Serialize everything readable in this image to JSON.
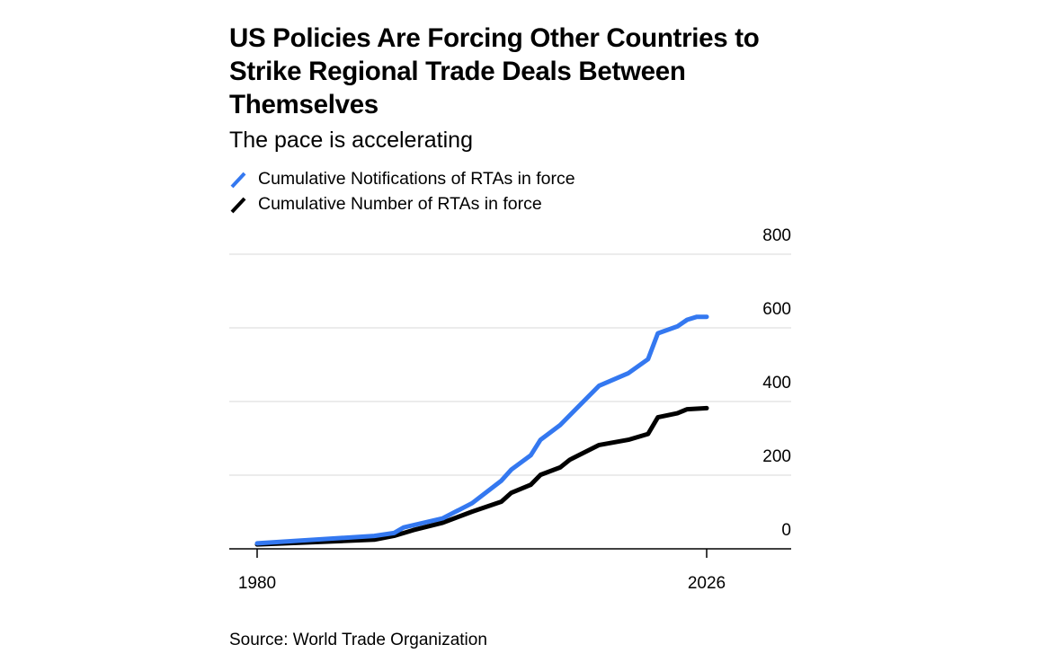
{
  "chart_data": {
    "type": "line",
    "title": "US Policies Are Forcing Other Countries to Strike Regional Trade Deals Between Themselves",
    "subtitle": "The pace is accelerating",
    "source": "Source: World Trade Organization",
    "xlim": [
      1980,
      2026
    ],
    "ylim": [
      0,
      800
    ],
    "x_ticks": [
      "1980",
      "2026"
    ],
    "y_ticks": [
      "800",
      "600",
      "400",
      "200",
      "0"
    ],
    "grid": true,
    "legend": "top-left",
    "series": [
      {
        "name": "Cumulative Notifications of RTAs in force",
        "color": "#3478f0",
        "x": [
          1980,
          1992,
          1994,
          1995,
          1999,
          2002,
          2005,
          2006,
          2008,
          2009,
          2011,
          2015,
          2018,
          2020,
          2021,
          2023,
          2024,
          2025,
          2026
        ],
        "values": [
          15,
          35,
          43,
          58,
          83,
          124,
          185,
          215,
          254,
          296,
          336,
          443,
          477,
          515,
          585,
          604,
          622,
          630,
          630
        ]
      },
      {
        "name": "Cumulative Number of RTAs in force",
        "color": "#000000",
        "x": [
          1980,
          1992,
          1994,
          1996,
          1999,
          2002,
          2005,
          2006,
          2008,
          2009,
          2011,
          2012,
          2015,
          2018,
          2020,
          2021,
          2023,
          2024,
          2026
        ],
        "values": [
          12,
          25,
          35,
          51,
          71,
          101,
          128,
          152,
          174,
          201,
          221,
          242,
          282,
          296,
          312,
          357,
          368,
          379,
          382
        ]
      }
    ]
  }
}
